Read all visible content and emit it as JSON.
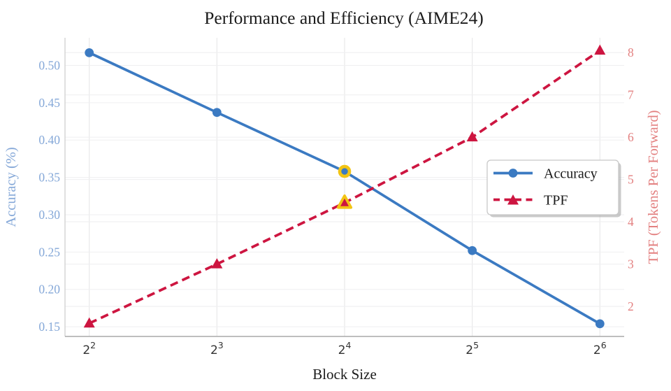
{
  "chart_data": {
    "type": "line",
    "title": "Performance and Efficiency (AIME24)",
    "xlabel": "Block Size",
    "x_base": 2,
    "x_exponents": [
      2,
      3,
      4,
      5,
      6
    ],
    "x_values": [
      4,
      8,
      16,
      32,
      64
    ],
    "x_tick_labels": [
      "2^2",
      "2^3",
      "2^4",
      "2^5",
      "2^6"
    ],
    "x_range_exponents": [
      1.81,
      6.19
    ],
    "left_axis": {
      "label": "Accuracy (%)",
      "ticks": [
        0.5,
        0.45,
        0.4,
        0.35,
        0.3,
        0.25,
        0.2,
        0.15
      ],
      "range": [
        0.137,
        0.537
      ],
      "color": "#85a8d8"
    },
    "right_axis": {
      "label": "TPF (Tokens Per Forward)",
      "ticks": [
        8,
        7,
        6,
        5,
        4,
        3,
        2
      ],
      "range": [
        1.29,
        8.35
      ],
      "color": "#e38080"
    },
    "series": [
      {
        "name": "Accuracy",
        "axis": "left",
        "line_style": "solid",
        "marker": "circle",
        "color": "#3b7ac2",
        "x_exponents": [
          2,
          3,
          4,
          5,
          6
        ],
        "values": [
          0.517,
          0.437,
          0.358,
          0.252,
          0.154
        ]
      },
      {
        "name": "TPF",
        "axis": "right",
        "line_style": "dashed",
        "marker": "triangle",
        "color": "#cd1540",
        "x_exponents": [
          2,
          3,
          4,
          5,
          6
        ],
        "values": [
          1.6,
          3.0,
          4.45,
          6.0,
          8.05
        ]
      }
    ],
    "highlight": {
      "index": 2,
      "x_tick_label": "2^4",
      "ring_color": "#f2c414"
    },
    "legend": {
      "entries": [
        "Accuracy",
        "TPF"
      ],
      "position": "center-right"
    },
    "grid": "on",
    "style_colors": {
      "hgrid": "#efeff1",
      "vgrid": "#e9e9ea",
      "spine_left": "#d0d0d0",
      "spine_bottom": "#a9a9a9",
      "legend_border": "#c8c8c8",
      "legend_shadow": "#9e9e9e",
      "background": "#ffffff"
    }
  }
}
